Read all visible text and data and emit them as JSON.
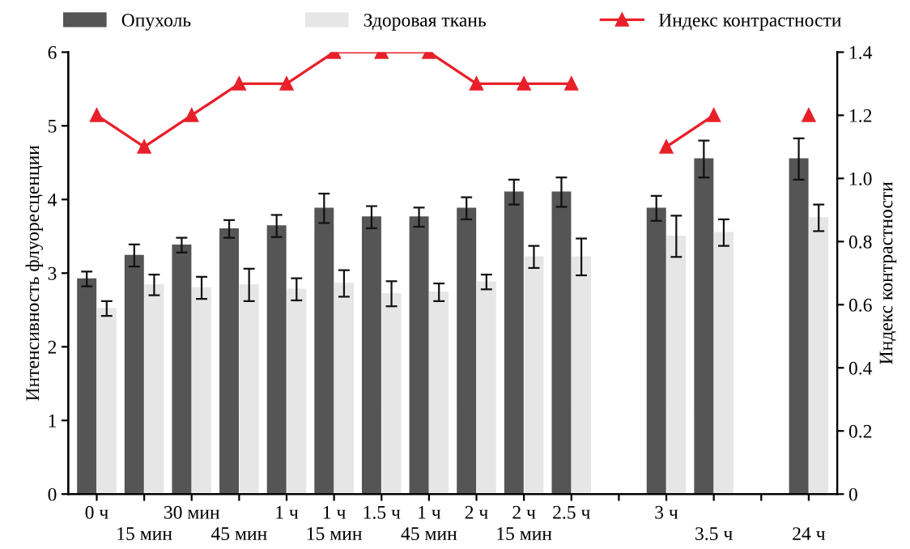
{
  "chart_data": {
    "type": "bar",
    "ylabel": "Интенсивность флуоресценции",
    "y2label": "Индекс контрастности",
    "categories": [
      "0 ч",
      "15 мин",
      "30 мин",
      "45 мин",
      "1 ч",
      "1 ч\n15 мин",
      "1.5 ч",
      "1 ч\n45 мин",
      "2 ч",
      "2 ч\n15 мин",
      "2.5 ч",
      null,
      "3 ч",
      "3.5 ч",
      null,
      "24 ч"
    ],
    "series": [
      {
        "name": "Опухоль",
        "color": "#555555",
        "values": [
          2.92,
          3.24,
          3.38,
          3.6,
          3.64,
          3.88,
          3.76,
          3.76,
          3.88,
          4.1,
          4.1,
          null,
          3.88,
          4.55,
          null,
          4.55
        ],
        "errors": [
          0.1,
          0.15,
          0.1,
          0.12,
          0.15,
          0.2,
          0.15,
          0.13,
          0.15,
          0.17,
          0.2,
          null,
          0.17,
          0.25,
          null,
          0.28
        ]
      },
      {
        "name": "Здоровая ткань",
        "color": "#e6e6e6",
        "values": [
          2.52,
          2.84,
          2.8,
          2.84,
          2.78,
          2.86,
          2.72,
          2.74,
          2.88,
          3.22,
          3.22,
          null,
          3.5,
          3.55,
          null,
          3.75
        ],
        "errors": [
          0.1,
          0.14,
          0.15,
          0.22,
          0.15,
          0.18,
          0.17,
          0.12,
          0.1,
          0.15,
          0.25,
          null,
          0.28,
          0.18,
          null,
          0.18
        ]
      },
      {
        "name": "Индекс контрастности",
        "type": "line",
        "axis": "y2",
        "color": "#e8202a",
        "marker": "triangle",
        "values": [
          1.2,
          1.1,
          1.2,
          1.3,
          1.3,
          1.4,
          1.4,
          1.4,
          1.3,
          1.3,
          1.3,
          null,
          1.1,
          1.2,
          null,
          1.2
        ]
      }
    ],
    "ylim": [
      0,
      6
    ],
    "yticks": [
      0,
      1,
      2,
      3,
      4,
      5,
      6
    ],
    "y2lim": [
      0,
      1.4
    ],
    "y2ticks": [
      {
        "value": 0,
        "label": "0"
      },
      0.2,
      0.4,
      0.6,
      0.8,
      {
        "value": 1.0,
        "label": "1.0"
      },
      1.2,
      1.4
    ],
    "grid": false,
    "legend": "top"
  }
}
